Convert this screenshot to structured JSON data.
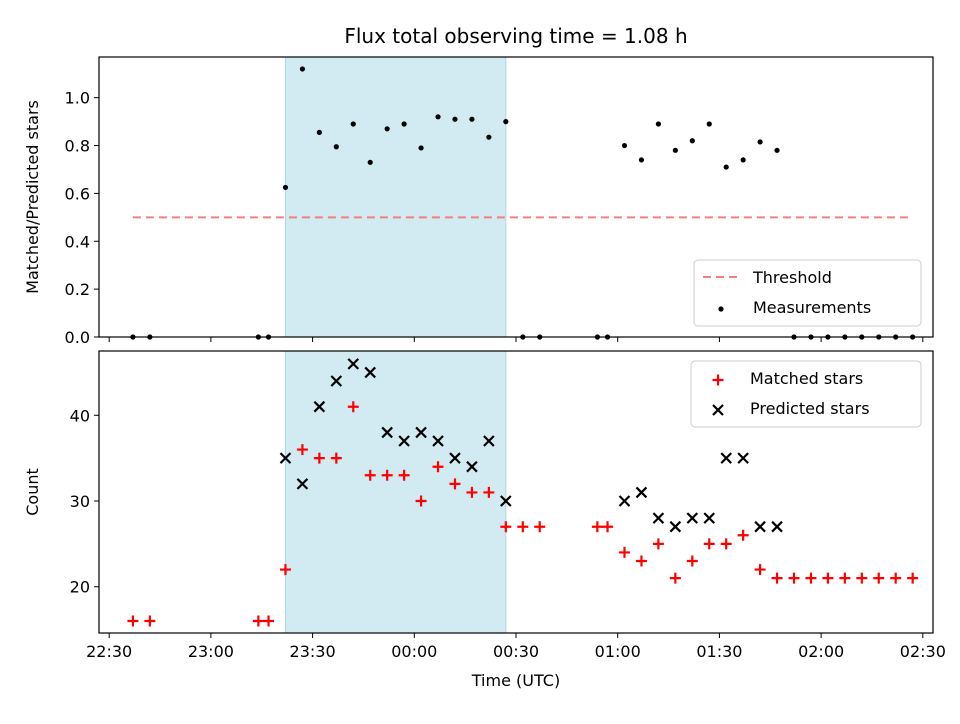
{
  "title": "Flux total observing time = 1.08 h",
  "chart_data": [
    {
      "type": "scatter",
      "panel": "top",
      "ylabel": "Matched/Predicted stars",
      "ylim": [
        0,
        1.17
      ],
      "yticks": [
        "0.0",
        "0.2",
        "0.4",
        "0.6",
        "0.8",
        "1.0"
      ],
      "ytick_values": [
        0,
        0.2,
        0.4,
        0.6,
        0.8,
        1.0
      ],
      "shaded_region": [
        "23:22",
        "00:27"
      ],
      "threshold": {
        "name": "Threshold",
        "value": 0.5,
        "x_range": [
          "22:37",
          "02:27"
        ],
        "color": "#f08080",
        "style": "dashed"
      },
      "series": [
        {
          "name": "Measurements",
          "color": "#000000",
          "marker": "dot",
          "points": [
            [
              "22:37",
              0
            ],
            [
              "22:42",
              0
            ],
            [
              "23:14",
              0
            ],
            [
              "23:17",
              0
            ],
            [
              "23:22",
              0.625
            ],
            [
              "23:27",
              1.12
            ],
            [
              "23:32",
              0.855
            ],
            [
              "23:37",
              0.795
            ],
            [
              "23:42",
              0.89
            ],
            [
              "23:47",
              0.73
            ],
            [
              "23:52",
              0.87
            ],
            [
              "23:57",
              0.89
            ],
            [
              "00:02",
              0.79
            ],
            [
              "00:07",
              0.92
            ],
            [
              "00:12",
              0.91
            ],
            [
              "00:17",
              0.91
            ],
            [
              "00:22",
              0.835
            ],
            [
              "00:27",
              0.9
            ],
            [
              "00:32",
              0
            ],
            [
              "00:37",
              0
            ],
            [
              "00:54",
              0
            ],
            [
              "00:57",
              0
            ],
            [
              "01:02",
              0.8
            ],
            [
              "01:07",
              0.74
            ],
            [
              "01:12",
              0.89
            ],
            [
              "01:17",
              0.78
            ],
            [
              "01:22",
              0.82
            ],
            [
              "01:27",
              0.89
            ],
            [
              "01:32",
              0.71
            ],
            [
              "01:37",
              0.74
            ],
            [
              "01:42",
              0.815
            ],
            [
              "01:47",
              0.78
            ],
            [
              "01:52",
              0
            ],
            [
              "01:57",
              0
            ],
            [
              "02:02",
              0
            ],
            [
              "02:07",
              0
            ],
            [
              "02:12",
              0
            ],
            [
              "02:17",
              0
            ],
            [
              "02:22",
              0
            ],
            [
              "02:27",
              0
            ]
          ]
        }
      ],
      "legend": {
        "position": "lower right",
        "entries": [
          "Threshold",
          "Measurements"
        ]
      }
    },
    {
      "type": "scatter",
      "panel": "bottom",
      "xlabel": "Time (UTC)",
      "ylabel": "Count",
      "ylim": [
        14.6,
        47.5
      ],
      "yticks": [
        "20",
        "30",
        "40"
      ],
      "ytick_values": [
        20,
        30,
        40
      ],
      "xlim": [
        "22:27",
        "02:33"
      ],
      "xticks": [
        "22:30",
        "23:00",
        "23:30",
        "00:00",
        "00:30",
        "01:00",
        "01:30",
        "02:00",
        "02:30"
      ],
      "shaded_region": [
        "23:22",
        "00:27"
      ],
      "series": [
        {
          "name": "Matched stars",
          "color": "#ff0000",
          "marker": "plus",
          "points": [
            [
              "22:37",
              16
            ],
            [
              "22:42",
              16
            ],
            [
              "23:14",
              16
            ],
            [
              "23:17",
              16
            ],
            [
              "23:22",
              22
            ],
            [
              "23:27",
              36
            ],
            [
              "23:32",
              35
            ],
            [
              "23:37",
              35
            ],
            [
              "23:42",
              41
            ],
            [
              "23:47",
              33
            ],
            [
              "23:52",
              33
            ],
            [
              "23:57",
              33
            ],
            [
              "00:02",
              30
            ],
            [
              "00:07",
              34
            ],
            [
              "00:12",
              32
            ],
            [
              "00:17",
              31
            ],
            [
              "00:22",
              31
            ],
            [
              "00:27",
              27
            ],
            [
              "00:32",
              27
            ],
            [
              "00:37",
              27
            ],
            [
              "00:54",
              27
            ],
            [
              "00:57",
              27
            ],
            [
              "01:02",
              24
            ],
            [
              "01:07",
              23
            ],
            [
              "01:12",
              25
            ],
            [
              "01:17",
              21
            ],
            [
              "01:22",
              23
            ],
            [
              "01:27",
              25
            ],
            [
              "01:32",
              25
            ],
            [
              "01:37",
              26
            ],
            [
              "01:42",
              22
            ],
            [
              "01:47",
              21
            ],
            [
              "01:52",
              21
            ],
            [
              "01:57",
              21
            ],
            [
              "02:02",
              21
            ],
            [
              "02:07",
              21
            ],
            [
              "02:12",
              21
            ],
            [
              "02:17",
              21
            ],
            [
              "02:22",
              21
            ],
            [
              "02:27",
              21
            ]
          ]
        },
        {
          "name": "Predicted stars",
          "color": "#000000",
          "marker": "x",
          "points": [
            [
              "23:22",
              35
            ],
            [
              "23:27",
              32
            ],
            [
              "23:32",
              41
            ],
            [
              "23:37",
              44
            ],
            [
              "23:42",
              46
            ],
            [
              "23:47",
              45
            ],
            [
              "23:52",
              38
            ],
            [
              "23:57",
              37
            ],
            [
              "00:02",
              38
            ],
            [
              "00:07",
              37
            ],
            [
              "00:12",
              35
            ],
            [
              "00:17",
              34
            ],
            [
              "00:22",
              37
            ],
            [
              "00:27",
              30
            ],
            [
              "01:02",
              30
            ],
            [
              "01:07",
              31
            ],
            [
              "01:12",
              28
            ],
            [
              "01:17",
              27
            ],
            [
              "01:22",
              28
            ],
            [
              "01:27",
              28
            ],
            [
              "01:32",
              35
            ],
            [
              "01:37",
              35
            ],
            [
              "01:42",
              27
            ],
            [
              "01:47",
              27
            ]
          ]
        }
      ],
      "legend": {
        "position": "upper right",
        "entries": [
          "Matched stars",
          "Predicted stars"
        ]
      }
    }
  ],
  "colors": {
    "shade": "#add8e6",
    "threshold": "#f08080",
    "matched": "#ff0000",
    "predicted": "#000000"
  }
}
